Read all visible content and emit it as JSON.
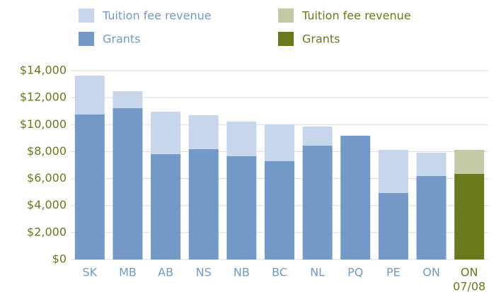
{
  "chart_data": {
    "type": "stacked_bar",
    "categories": [
      "SK",
      "MB",
      "AB",
      "NS",
      "NB",
      "BC",
      "NL",
      "PQ",
      "PE",
      "ON",
      "ON"
    ],
    "category_sublabels": [
      null,
      null,
      null,
      null,
      null,
      null,
      null,
      null,
      null,
      null,
      "07/08"
    ],
    "series": [
      {
        "name": "Grants",
        "color": "#7299c7",
        "values": [
          10750,
          11220,
          7810,
          8180,
          7660,
          7290,
          8440,
          9180,
          4930,
          6190,
          null
        ]
      },
      {
        "name": "Tuition fee revenue",
        "color": "#c7d6ea",
        "values": [
          2880,
          1260,
          3150,
          2520,
          2570,
          2730,
          1420,
          0,
          3200,
          1730,
          null
        ]
      },
      {
        "name": "Grants",
        "color": "#697a1c",
        "values": [
          null,
          null,
          null,
          null,
          null,
          null,
          null,
          null,
          null,
          null,
          6350
        ]
      },
      {
        "name": "Tuition fee revenue",
        "color": "#c3caa5",
        "values": [
          null,
          null,
          null,
          null,
          null,
          null,
          null,
          null,
          null,
          null,
          1780
        ]
      }
    ],
    "ylim": [
      0,
      14000
    ],
    "yticks": [
      {
        "value": 0,
        "label": "$0"
      },
      {
        "value": 2000,
        "label": "$2,000"
      },
      {
        "value": 4000,
        "label": "$4,000"
      },
      {
        "value": 6000,
        "label": "$6,000"
      },
      {
        "value": 8000,
        "label": "$8,000"
      },
      {
        "value": 10000,
        "label": "$10,000"
      },
      {
        "value": 12000,
        "label": "$12,000"
      },
      {
        "value": 14000,
        "label": "$14,000"
      }
    ],
    "grid": true
  }
}
